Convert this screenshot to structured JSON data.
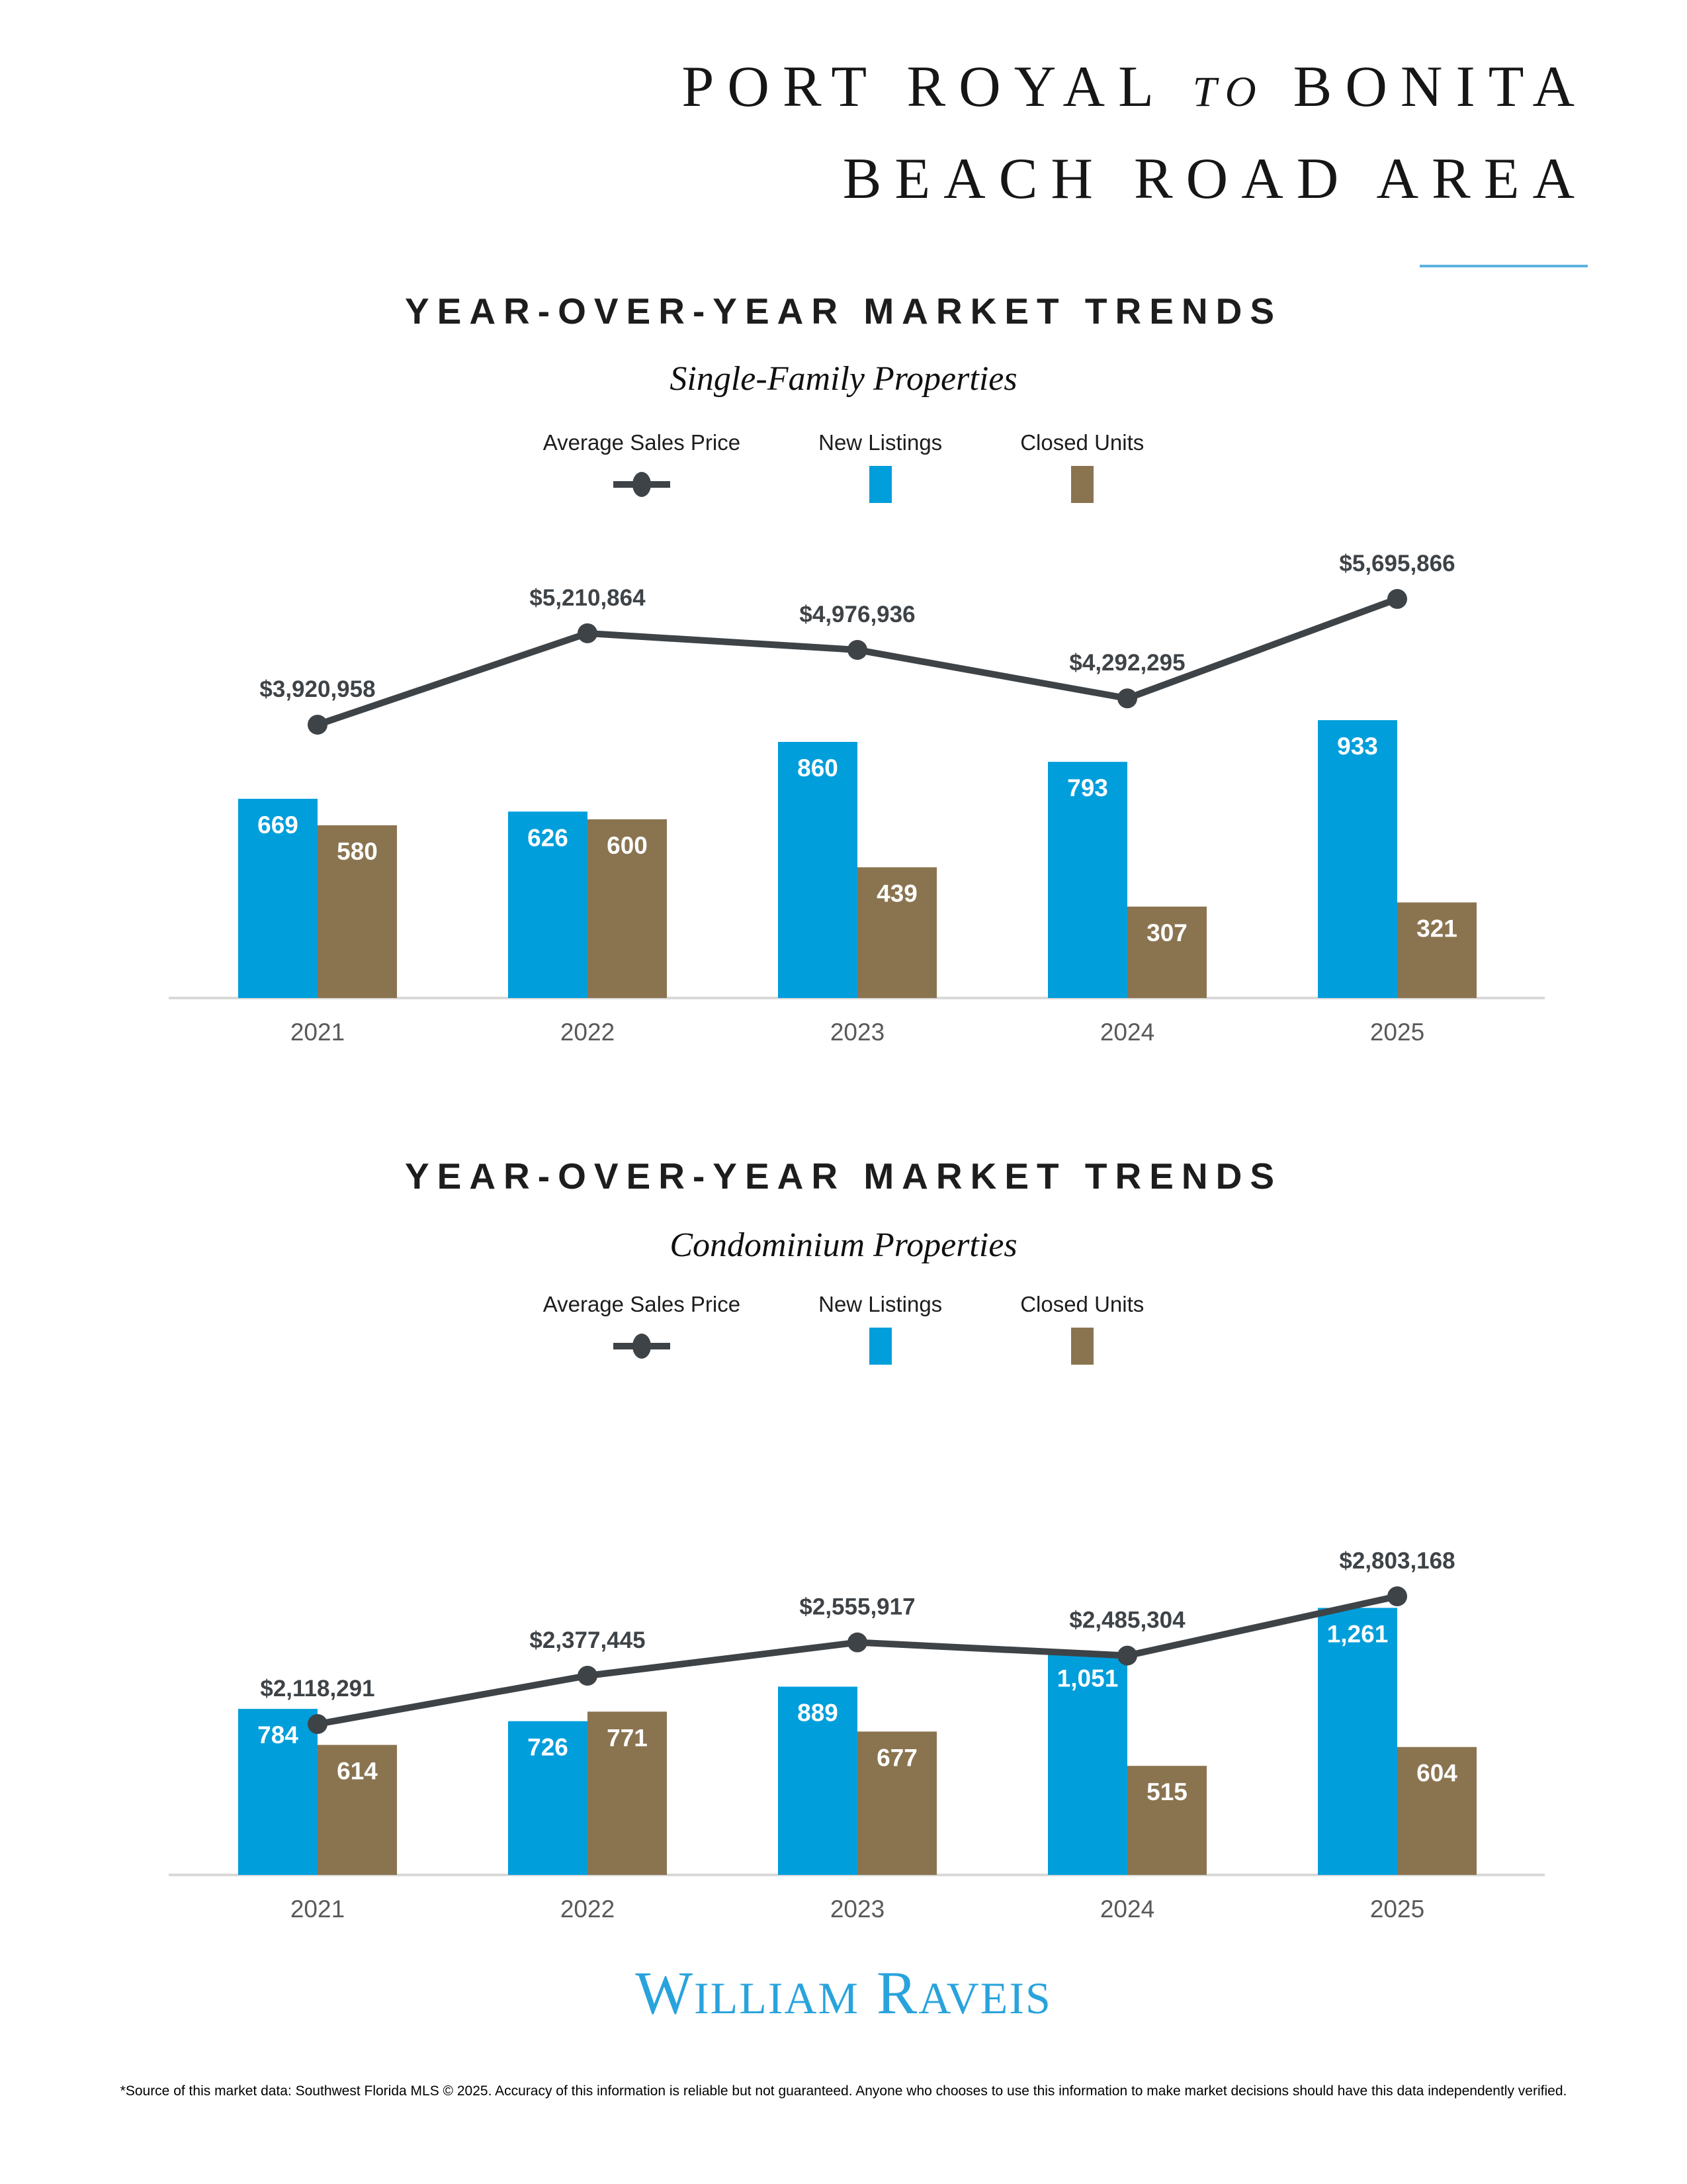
{
  "header": {
    "title_part1": "PORT ROYAL",
    "title_part2": "to",
    "title_part3": "BONITA",
    "title_line2": "BEACH ROAD AREA"
  },
  "colors": {
    "new_listings_bar": "#009EDB",
    "closed_units_bar": "#8A7450",
    "price_line": "#3E4347",
    "axis_line": "#D9D9D9",
    "title_underline": "#5BB3DE",
    "logo_blue": "#29A3DC",
    "bar_value_text": "#FFFFFF",
    "price_label_text": "#3E4347",
    "year_label_text": "#595959"
  },
  "chart_data": [
    {
      "type": "bar+line",
      "title": "YEAR-OVER-YEAR MARKET TRENDS",
      "subtitle": "Single-Family Properties",
      "categories": [
        "2021",
        "2022",
        "2023",
        "2024",
        "2025"
      ],
      "legend_position": "top",
      "grid": false,
      "series": [
        {
          "name": "Average Sales Price",
          "type": "line",
          "values": [
            3920958,
            5210864,
            4976936,
            4292295,
            5695866
          ],
          "labels": [
            "$3,920,958",
            "$5,210,864",
            "$4,976,936",
            "$4,292,295",
            "$5,695,866"
          ]
        },
        {
          "name": "New Listings",
          "type": "bar",
          "values": [
            669,
            626,
            860,
            793,
            933
          ],
          "labels": [
            "669",
            "626",
            "860",
            "793",
            "933"
          ]
        },
        {
          "name": "Closed Units",
          "type": "bar",
          "values": [
            580,
            600,
            439,
            307,
            321
          ],
          "labels": [
            "580",
            "600",
            "439",
            "307",
            "321"
          ]
        }
      ]
    },
    {
      "type": "bar+line",
      "title": "YEAR-OVER-YEAR MARKET TRENDS",
      "subtitle": "Condominium Properties",
      "categories": [
        "2021",
        "2022",
        "2023",
        "2024",
        "2025"
      ],
      "legend_position": "top",
      "grid": false,
      "series": [
        {
          "name": "Average Sales Price",
          "type": "line",
          "values": [
            2118291,
            2377445,
            2555917,
            2485304,
            2803168
          ],
          "labels": [
            "$2,118,291",
            "$2,377,445",
            "$2,555,917",
            "$2,485,304",
            "$2,803,168"
          ]
        },
        {
          "name": "New Listings",
          "type": "bar",
          "values": [
            784,
            726,
            889,
            1051,
            1261
          ],
          "labels": [
            "784",
            "726",
            "889",
            "1,051",
            "1,261"
          ]
        },
        {
          "name": "Closed Units",
          "type": "bar",
          "values": [
            614,
            771,
            677,
            515,
            604
          ],
          "labels": [
            "614",
            "771",
            "677",
            "515",
            "604"
          ]
        }
      ]
    }
  ],
  "footer": {
    "logo_w": "W",
    "logo_illiam": "ILLIAM",
    "logo_r": "R",
    "logo_aveis": "AVEIS",
    "disclaimer": "*Source of this market data: Southwest Florida MLS © 2025. Accuracy of this information is reliable but not guaranteed. Anyone who chooses to use this information to make market decisions should have this data independently verified."
  }
}
